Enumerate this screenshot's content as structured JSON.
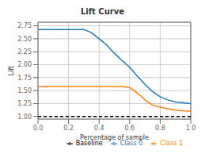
{
  "chart_data": {
    "type": "line",
    "title": "Lift Curve",
    "xlabel": "Percentage of sample",
    "ylabel": "Lift",
    "xlim": [
      0.0,
      1.0
    ],
    "ylim": [
      0.95,
      2.82
    ],
    "xticks": [
      {
        "value": 0,
        "label": "0.0"
      },
      0.2,
      0.4,
      0.6,
      0.8,
      {
        "value": 1,
        "label": "1.0"
      }
    ],
    "yticks": [
      {
        "value": 1,
        "label": "1.00"
      },
      {
        "value": 1.25,
        "label": "1.25"
      },
      {
        "value": 1.5,
        "label": "1.50"
      },
      {
        "value": 1.75,
        "label": "1.75"
      },
      {
        "value": 2,
        "label": "2.00"
      },
      {
        "value": 2.25,
        "label": "2.25"
      },
      {
        "value": 2.5,
        "label": "2.50"
      },
      {
        "value": 2.75,
        "label": "2.75"
      }
    ],
    "grid": true,
    "legend": "lower right",
    "series": [
      {
        "name": "Class 0",
        "color": "#1f77b4",
        "line_style": "solid",
        "x": [
          0.0,
          0.2,
          0.3,
          0.35,
          0.4,
          0.45,
          0.5,
          0.55,
          0.6,
          0.65,
          0.7,
          0.75,
          0.8,
          0.85,
          0.9,
          1.0
        ],
        "values": [
          2.68,
          2.68,
          2.68,
          2.62,
          2.5,
          2.38,
          2.22,
          2.08,
          1.95,
          1.78,
          1.62,
          1.48,
          1.38,
          1.32,
          1.28,
          1.25
        ]
      },
      {
        "name": "Class 1",
        "color": "#ff7f0e",
        "line_style": "solid",
        "x": [
          0.0,
          0.2,
          0.3,
          0.4,
          0.5,
          0.55,
          0.6,
          0.62,
          0.65,
          0.68,
          0.7,
          0.75,
          0.8,
          0.85,
          0.9,
          1.0
        ],
        "values": [
          1.58,
          1.58,
          1.58,
          1.58,
          1.58,
          1.58,
          1.56,
          1.52,
          1.45,
          1.38,
          1.32,
          1.22,
          1.18,
          1.15,
          1.12,
          1.1
        ]
      },
      {
        "name": "Baseline",
        "color": "black",
        "line_style": "dashed",
        "x": [
          0.0,
          1.0
        ],
        "values": [
          1.0,
          1.0
        ]
      }
    ]
  }
}
